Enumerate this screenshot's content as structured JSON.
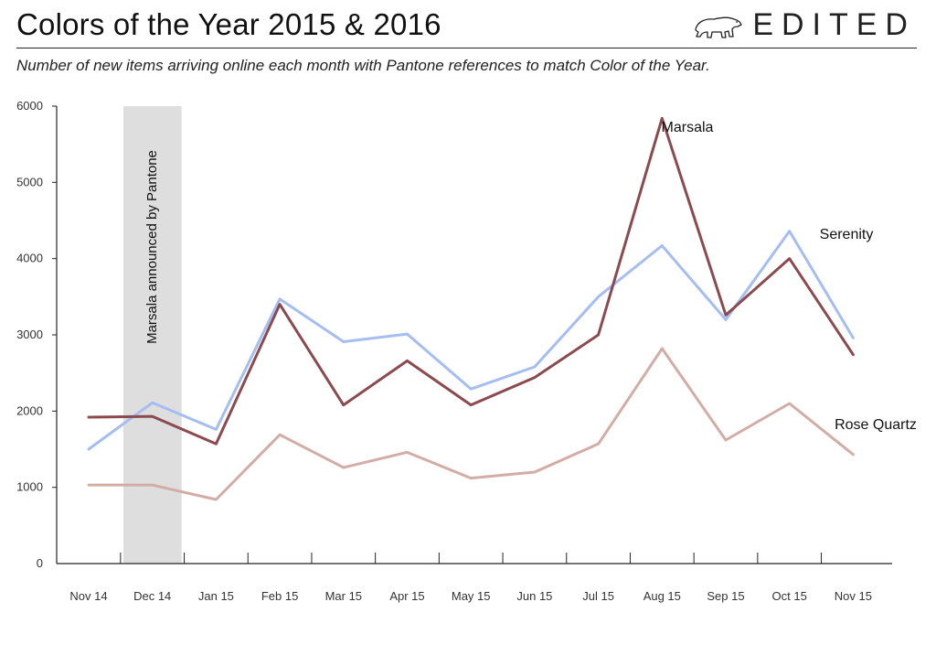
{
  "header": {
    "title": "Colors of the Year 2015 & 2016",
    "subtitle": "Number of new items arriving online each month with Pantone references to match Color of the Year.",
    "brand": "EDITED",
    "logo_icon": "polar-bear-icon"
  },
  "chart_data": {
    "type": "line",
    "categories": [
      "Nov 14",
      "Dec 14",
      "Jan 15",
      "Feb 15",
      "Mar 15",
      "Apr 15",
      "May 15",
      "Jun 15",
      "Jul 15",
      "Aug 15",
      "Sep 15",
      "Oct 15",
      "Nov 15"
    ],
    "yticks": [
      0,
      1000,
      2000,
      3000,
      4000,
      5000,
      6000
    ],
    "ylim": [
      0,
      6000
    ],
    "grid": false,
    "series": [
      {
        "name": "Marsala",
        "color": "#8B4A4E",
        "values": [
          1920,
          1930,
          1570,
          3400,
          2080,
          2660,
          2080,
          2440,
          3000,
          5840,
          3260,
          4000,
          2740
        ]
      },
      {
        "name": "Serenity",
        "color": "#A4BDF2",
        "values": [
          1500,
          2110,
          1760,
          3470,
          2910,
          3010,
          2290,
          2580,
          3500,
          4170,
          3200,
          4360,
          2960
        ]
      },
      {
        "name": "Rose Quartz",
        "color": "#D2ADA6",
        "values": [
          1030,
          1030,
          840,
          1690,
          1260,
          1460,
          1120,
          1200,
          1570,
          2820,
          1620,
          2100,
          1430
        ]
      }
    ],
    "annotation": {
      "text": "Marsala announced by Pantone",
      "between": [
        "Nov 14",
        "Dec 14"
      ],
      "color": "#DEDEDE"
    }
  }
}
